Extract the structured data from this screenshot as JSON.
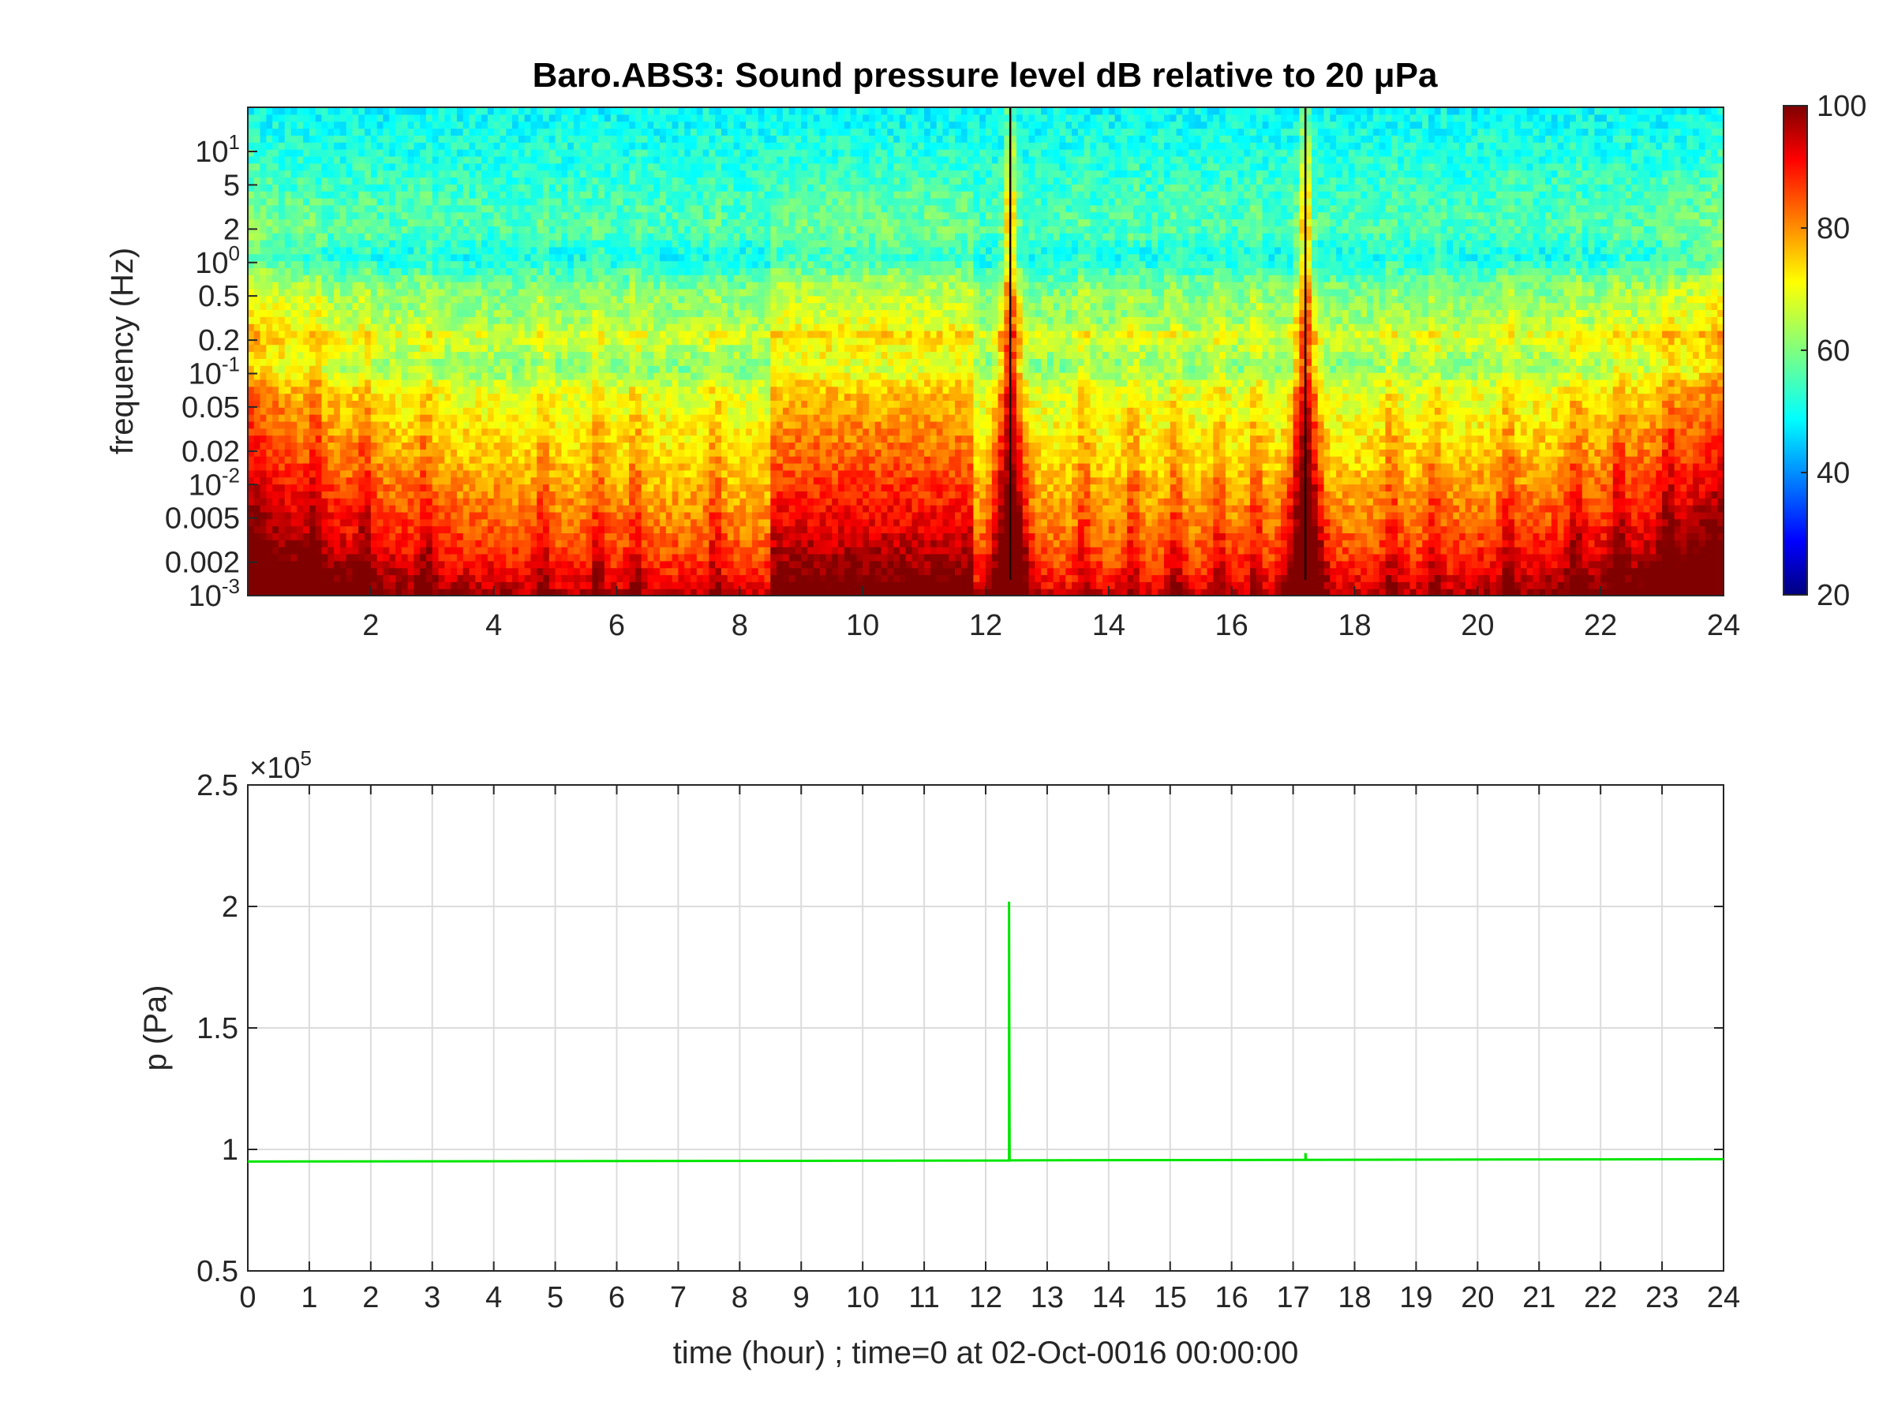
{
  "colors": {
    "background": "#ffffff",
    "axes": "#262626",
    "grid": "#dcdcdc",
    "pressure_line": "#00e600",
    "colormap": "jet"
  },
  "chart_data": [
    {
      "type": "heatmap",
      "title": "Baro.ABS3: Sound pressure level dB relative to 20 μPa",
      "xlabel": "",
      "ylabel": "frequency (Hz)",
      "xlim": [
        0,
        24
      ],
      "ylim": [
        0.001,
        25
      ],
      "yscale": "log",
      "x_ticks": [
        "2",
        "4",
        "6",
        "8",
        "10",
        "12",
        "14",
        "16",
        "18",
        "20",
        "22",
        "24"
      ],
      "x_tick_values": [
        2,
        4,
        6,
        8,
        10,
        12,
        14,
        16,
        18,
        20,
        22,
        24
      ],
      "y_ticks": [
        {
          "value": 10,
          "base": "10",
          "exp": "1"
        },
        {
          "value": 5,
          "label": "5"
        },
        {
          "value": 2,
          "label": "2"
        },
        {
          "value": 1,
          "base": "10",
          "exp": "0"
        },
        {
          "value": 0.5,
          "label": "0.5"
        },
        {
          "value": 0.2,
          "label": "0.2"
        },
        {
          "value": 0.1,
          "base": "10",
          "exp": "-1"
        },
        {
          "value": 0.05,
          "label": "0.05"
        },
        {
          "value": 0.02,
          "label": "0.02"
        },
        {
          "value": 0.01,
          "base": "10",
          "exp": "-2"
        },
        {
          "value": 0.005,
          "label": "0.005"
        },
        {
          "value": 0.002,
          "label": "0.002"
        },
        {
          "value": 0.001,
          "base": "10",
          "exp": "-3"
        }
      ],
      "colorbar": {
        "clim": [
          20,
          100
        ],
        "ticks": [
          "20",
          "40",
          "60",
          "80",
          "100"
        ],
        "tick_values": [
          20,
          40,
          60,
          80,
          100
        ]
      },
      "colormap": "jet",
      "features": {
        "high_freq_level_db": 50,
        "low_freq_level_db": 95,
        "active_period_hours": [
          8.5,
          11.8
        ],
        "impulse_events_hours": [
          12.4,
          17.2
        ]
      }
    },
    {
      "type": "line",
      "title": "",
      "xlabel": "time (hour) ; time=0 at 02-Oct-0016 00:00:00",
      "ylabel": "p (Pa)",
      "exponent_label": {
        "prefix": "×10",
        "exp": "5"
      },
      "scale_factor": 100000,
      "xlim": [
        0,
        24
      ],
      "ylim": [
        0.5,
        2.5
      ],
      "grid": true,
      "x_ticks": [
        "0",
        "1",
        "2",
        "3",
        "4",
        "5",
        "6",
        "7",
        "8",
        "9",
        "10",
        "11",
        "12",
        "13",
        "14",
        "15",
        "16",
        "17",
        "18",
        "19",
        "20",
        "21",
        "22",
        "23",
        "24"
      ],
      "x_tick_values": [
        0,
        1,
        2,
        3,
        4,
        5,
        6,
        7,
        8,
        9,
        10,
        11,
        12,
        13,
        14,
        15,
        16,
        17,
        18,
        19,
        20,
        21,
        22,
        23,
        24
      ],
      "y_ticks": [
        "0.5",
        "1",
        "1.5",
        "2",
        "2.5"
      ],
      "y_tick_values": [
        0.5,
        1,
        1.5,
        2,
        2.5
      ],
      "series": [
        {
          "color": "#00e600",
          "x": [
            0,
            6,
            12,
            12.37,
            12.38,
            12.38,
            12.39,
            12.4,
            17.19,
            17.2,
            17.2,
            17.21,
            17.22,
            24
          ],
          "y": [
            0.95,
            0.952,
            0.954,
            0.954,
            0.954,
            2.02,
            0.955,
            0.955,
            0.957,
            0.957,
            0.985,
            0.957,
            0.957,
            0.96
          ]
        }
      ]
    }
  ]
}
